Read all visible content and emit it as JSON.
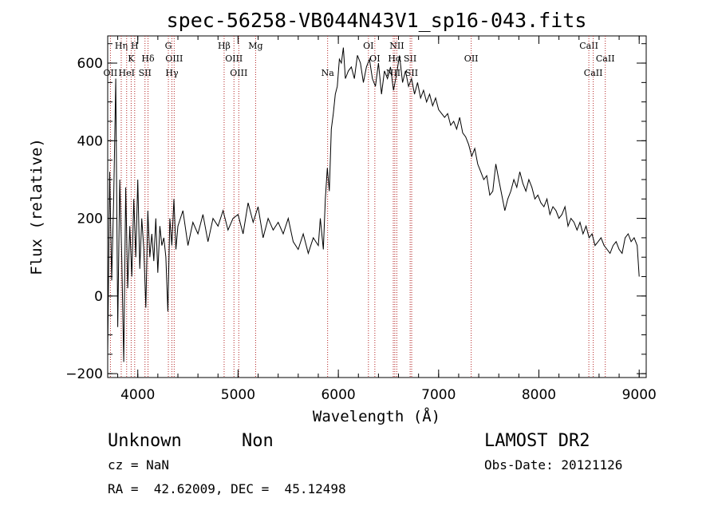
{
  "chart_data": {
    "type": "line",
    "title": "spec-56258-VB044N43V1_sp16-043.fits",
    "xlabel": "Wavelength (Å)",
    "ylabel": "Flux (relative)",
    "xlim": [
      3700,
      9070
    ],
    "ylim": [
      -210,
      670
    ],
    "x_ticks": [
      4000,
      5000,
      6000,
      7000,
      8000,
      9000
    ],
    "y_ticks": [
      -200,
      0,
      200,
      400,
      600
    ],
    "grid": false,
    "series": [
      {
        "x": [
          3700,
          3720,
          3740,
          3760,
          3780,
          3800,
          3820,
          3840,
          3860,
          3880,
          3900,
          3920,
          3940,
          3960,
          3980,
          4000,
          4020,
          4040,
          4060,
          4080,
          4100,
          4120,
          4140,
          4160,
          4180,
          4200,
          4220,
          4240,
          4260,
          4280,
          4300,
          4320,
          4340,
          4360,
          4380,
          4400,
          4450,
          4500,
          4550,
          4600,
          4650,
          4700,
          4750,
          4800,
          4850,
          4900,
          4950,
          5000,
          5050,
          5100,
          5150,
          5200,
          5250,
          5300,
          5350,
          5400,
          5450,
          5500,
          5550,
          5600,
          5650,
          5700,
          5750,
          5800,
          5820,
          5850,
          5870,
          5890,
          5910,
          5930,
          5950,
          5970,
          5990,
          6010,
          6030,
          6050,
          6070,
          6100,
          6130,
          6160,
          6190,
          6220,
          6250,
          6280,
          6310,
          6340,
          6370,
          6400,
          6430,
          6460,
          6490,
          6520,
          6550,
          6580,
          6610,
          6640,
          6670,
          6700,
          6730,
          6760,
          6790,
          6820,
          6850,
          6880,
          6910,
          6940,
          6970,
          7000,
          7030,
          7060,
          7090,
          7120,
          7150,
          7180,
          7210,
          7240,
          7270,
          7300,
          7330,
          7360,
          7390,
          7420,
          7450,
          7480,
          7510,
          7540,
          7570,
          7600,
          7630,
          7660,
          7690,
          7720,
          7750,
          7780,
          7810,
          7840,
          7870,
          7900,
          7930,
          7960,
          7990,
          8020,
          8050,
          8080,
          8110,
          8140,
          8170,
          8200,
          8230,
          8260,
          8290,
          8320,
          8350,
          8380,
          8410,
          8440,
          8470,
          8500,
          8530,
          8560,
          8590,
          8620,
          8650,
          8680,
          8710,
          8740,
          8770,
          8800,
          8830,
          8860,
          8890,
          8920,
          8950,
          8980,
          9000
        ],
        "y": [
          -150,
          320,
          40,
          250,
          560,
          -80,
          300,
          100,
          -170,
          280,
          20,
          180,
          50,
          250,
          100,
          300,
          70,
          200,
          120,
          -30,
          220,
          100,
          160,
          90,
          200,
          60,
          180,
          130,
          150,
          100,
          -40,
          200,
          130,
          250,
          120,
          180,
          220,
          130,
          190,
          160,
          210,
          140,
          200,
          180,
          220,
          170,
          200,
          210,
          160,
          240,
          190,
          230,
          150,
          200,
          170,
          190,
          160,
          200,
          140,
          120,
          160,
          110,
          150,
          130,
          200,
          120,
          250,
          330,
          270,
          430,
          470,
          520,
          540,
          610,
          600,
          640,
          560,
          580,
          590,
          560,
          620,
          600,
          550,
          590,
          610,
          560,
          540,
          600,
          520,
          580,
          560,
          590,
          530,
          570,
          620,
          550,
          580,
          540,
          560,
          520,
          550,
          510,
          530,
          500,
          520,
          490,
          510,
          480,
          470,
          460,
          470,
          440,
          450,
          430,
          460,
          420,
          410,
          390,
          360,
          380,
          340,
          320,
          300,
          310,
          260,
          270,
          340,
          300,
          260,
          220,
          250,
          270,
          300,
          280,
          320,
          290,
          270,
          300,
          280,
          250,
          260,
          240,
          230,
          250,
          210,
          230,
          220,
          200,
          210,
          230,
          180,
          200,
          190,
          170,
          190,
          160,
          180,
          150,
          160,
          130,
          140,
          150,
          130,
          120,
          110,
          130,
          140,
          120,
          110,
          150,
          160,
          140,
          150,
          130,
          50
        ]
      }
    ],
    "line_markers": [
      {
        "label": "OII",
        "x": 3727,
        "row": 3
      },
      {
        "label": "Hη",
        "x": 3835,
        "row": 1
      },
      {
        "label": "K",
        "x": 3934,
        "row": 2
      },
      {
        "label": "H",
        "x": 3969,
        "row": 1
      },
      {
        "label": "HeI",
        "x": 3889,
        "row": 3
      },
      {
        "label": "SII",
        "x": 4072,
        "row": 3
      },
      {
        "label": "Hδ",
        "x": 4102,
        "row": 2
      },
      {
        "label": "G",
        "x": 4305,
        "row": 1
      },
      {
        "label": "OIII",
        "x": 4363,
        "row": 2
      },
      {
        "label": "Hγ",
        "x": 4340,
        "row": 3
      },
      {
        "label": "Hβ",
        "x": 4861,
        "row": 1
      },
      {
        "label": "OIII",
        "x": 4959,
        "row": 2
      },
      {
        "label": "OIII",
        "x": 5007,
        "row": 3
      },
      {
        "label": "Mg",
        "x": 5175,
        "row": 1
      },
      {
        "label": "Na",
        "x": 5893,
        "row": 3
      },
      {
        "label": "OI",
        "x": 6300,
        "row": 1
      },
      {
        "label": "OI",
        "x": 6364,
        "row": 2
      },
      {
        "label": "NII",
        "x": 6548,
        "row": 3
      },
      {
        "label": "NII",
        "x": 6583,
        "row": 1
      },
      {
        "label": "Hα",
        "x": 6563,
        "row": 2
      },
      {
        "label": "SII",
        "x": 6716,
        "row": 2
      },
      {
        "label": "SII",
        "x": 6731,
        "row": 3
      },
      {
        "label": "OII",
        "x": 7325,
        "row": 2
      },
      {
        "label": "CaII",
        "x": 8498,
        "row": 1
      },
      {
        "label": "CaII",
        "x": 8542,
        "row": 3
      },
      {
        "label": "CaII",
        "x": 8662,
        "row": 2
      }
    ]
  },
  "footer": {
    "object_class": "Unknown",
    "subclass": "Non",
    "cz": "cz = NaN",
    "coords": "RA =  42.62009, DEC =  45.12498",
    "survey": "LAMOST DR2",
    "obs_date": "Obs-Date: 20121126"
  },
  "colors": {
    "spectrum": "#000000",
    "marker_line": "#b22222",
    "axes": "#000000",
    "background": "#ffffff"
  }
}
